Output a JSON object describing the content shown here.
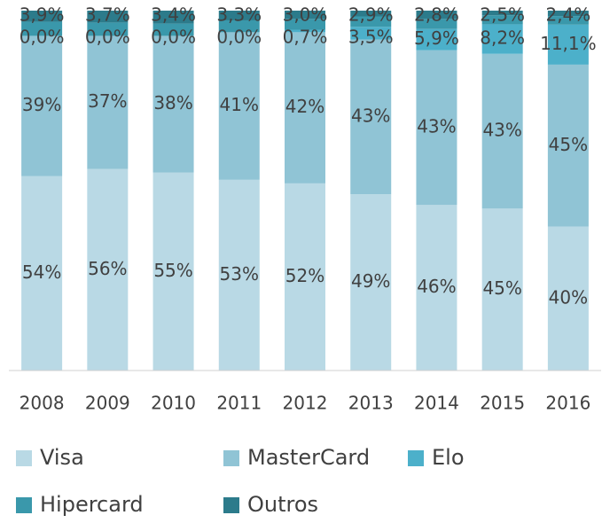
{
  "chart_data": {
    "type": "stacked_bar",
    "categories": [
      "2008",
      "2009",
      "2010",
      "2011",
      "2012",
      "2013",
      "2014",
      "2015",
      "2016"
    ],
    "ylim": [
      0,
      100
    ],
    "series": [
      {
        "name": "Visa",
        "color": "#b9d9e5",
        "values": [
          54,
          56,
          55,
          53,
          52,
          49,
          46,
          45,
          40
        ],
        "value_labels": [
          "54%",
          "56%",
          "55%",
          "53%",
          "52%",
          "49%",
          "46%",
          "45%",
          "40%"
        ]
      },
      {
        "name": "MasterCard",
        "color": "#90c4d5",
        "values": [
          39,
          37,
          38,
          41,
          42,
          43,
          43,
          43,
          45
        ],
        "value_labels": [
          "39%",
          "37%",
          "38%",
          "41%",
          "42%",
          "43%",
          "43%",
          "43%",
          "45%"
        ]
      },
      {
        "name": "Elo",
        "color": "#4cb0ca",
        "values": [
          0,
          0,
          0,
          0,
          0.7,
          3.5,
          5.9,
          8.2,
          11.1
        ],
        "value_labels": [
          "0,0%",
          "0,0%",
          "0,0%",
          "0,0%",
          "0,7%",
          "3,5%",
          "5,9%",
          "8,2%",
          "11,1%"
        ]
      },
      {
        "name": "Hipercard",
        "color": "#3a98ab",
        "values": [
          3.9,
          3.7,
          3.4,
          3.3,
          3.0,
          2.9,
          2.8,
          2.5,
          2.4
        ],
        "value_labels": [
          "3,9%",
          "3,7%",
          "3,4%",
          "3,3%",
          "3,0%",
          "2,9%",
          "2,8%",
          "2,5%",
          "2,4%"
        ]
      },
      {
        "name": "Outros",
        "color": "#2c7b8b",
        "values": [
          3.1,
          3.3,
          3.6,
          2.7,
          2.3,
          1.6,
          2.3,
          1.3,
          1.5
        ]
      }
    ]
  }
}
